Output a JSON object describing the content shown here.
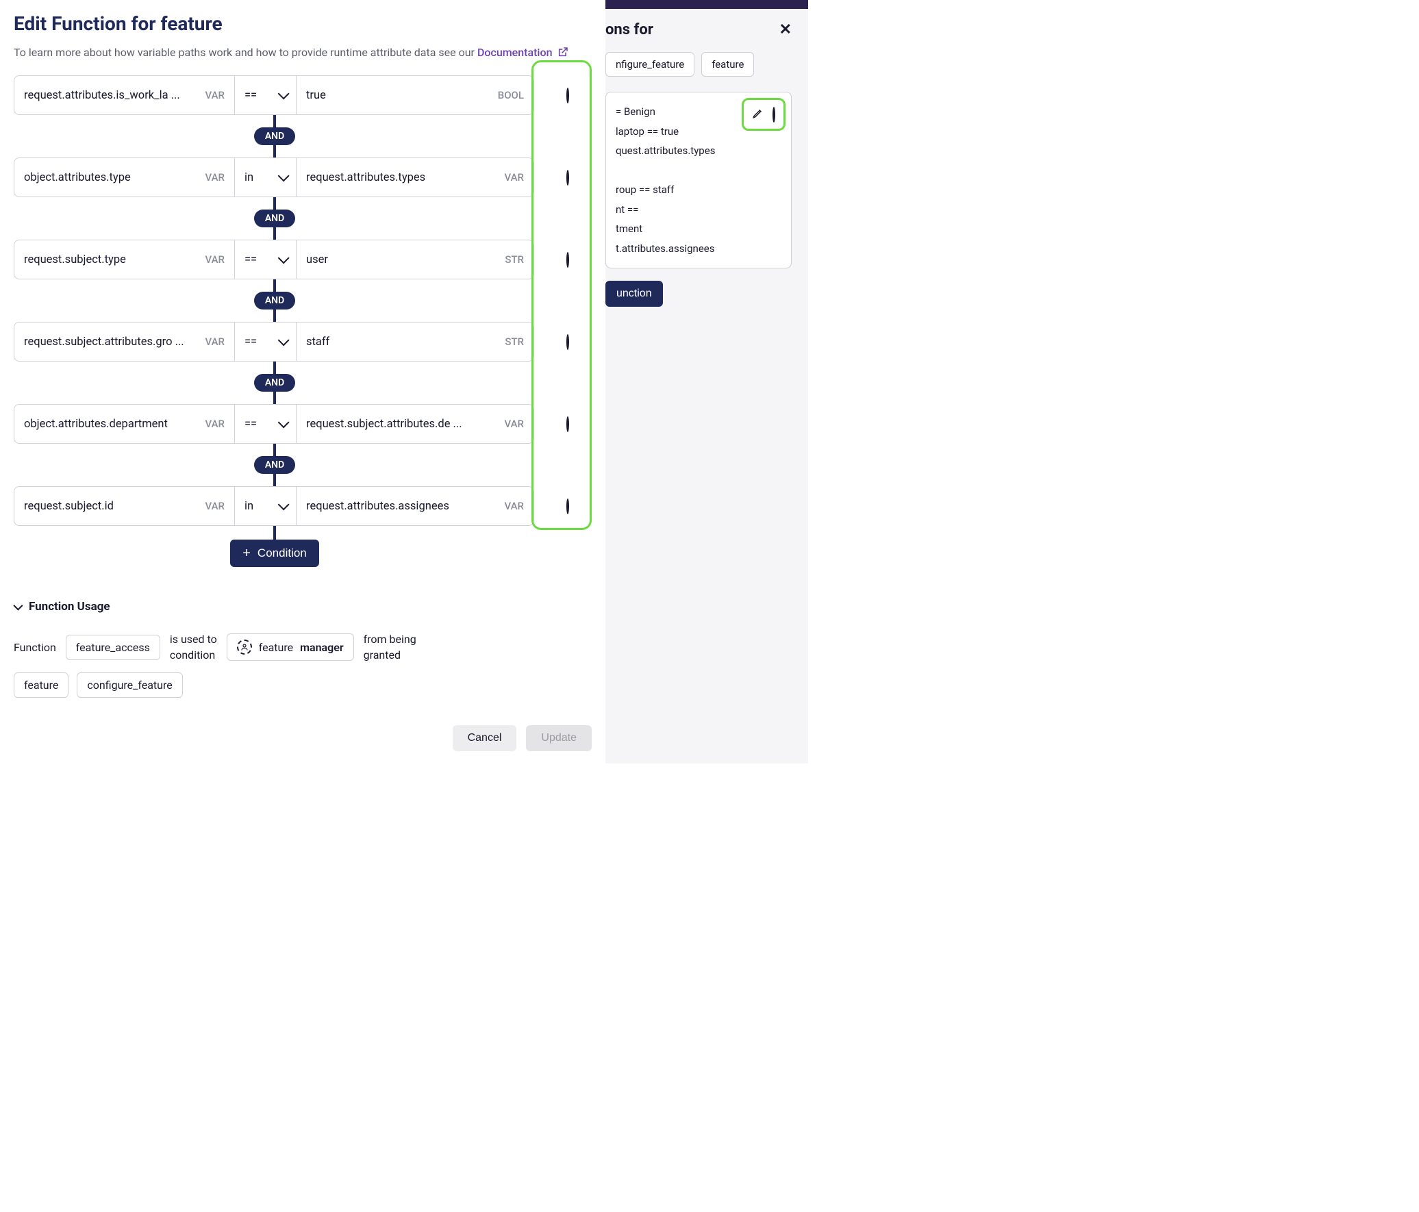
{
  "header": {
    "title": "Edit Function for feature",
    "help_prefix": "To learn more about how variable paths work and how to provide runtime attribute data see our ",
    "doc_link_text": "Documentation"
  },
  "colors": {
    "primary": "#1f2a5a",
    "highlight_border": "#6bdb3f",
    "text": "#1a1a2e",
    "muted": "#8a8c98",
    "border": "#d0d1d8",
    "link": "#6b3fb0",
    "side_bg": "#f5f5f7",
    "topbar": "#2b2250"
  },
  "connector_label": "AND",
  "conditions": [
    {
      "left": "request.attributes.is_work_la ...",
      "left_tag": "VAR",
      "op": "==",
      "right": "true",
      "right_tag": "BOOL"
    },
    {
      "left": "object.attributes.type",
      "left_tag": "VAR",
      "op": "in",
      "right": "request.attributes.types",
      "right_tag": "VAR"
    },
    {
      "left": "request.subject.type",
      "left_tag": "VAR",
      "op": "==",
      "right": "user",
      "right_tag": "STR"
    },
    {
      "left": "request.subject.attributes.gro ...",
      "left_tag": "VAR",
      "op": "==",
      "right": "staff",
      "right_tag": "STR"
    },
    {
      "left": "object.attributes.department",
      "left_tag": "VAR",
      "op": "==",
      "right": "request.subject.attributes.de ...",
      "right_tag": "VAR"
    },
    {
      "left": "request.subject.id",
      "left_tag": "VAR",
      "op": "in",
      "right": "request.attributes.assignees",
      "right_tag": "VAR"
    }
  ],
  "add_condition_label": "Condition",
  "usage": {
    "heading": "Function Usage",
    "label_function": "Function",
    "function_name": "feature_access",
    "text1a": "is used to",
    "text1b": "condition",
    "entity_kind": "feature",
    "entity_name": "manager",
    "text2a": "from being",
    "text2b": "granted",
    "targets": [
      "feature",
      "configure_feature"
    ]
  },
  "footer": {
    "cancel": "Cancel",
    "update": "Update"
  },
  "side": {
    "title_suffix": "ons for",
    "chips": [
      "nfigure_feature",
      "feature"
    ],
    "lines": [
      "= Benign",
      "laptop == true",
      "quest.attributes.types",
      "",
      "roup == staff",
      "nt ==",
      "tment",
      "t.attributes.assignees"
    ],
    "button": "unction"
  }
}
